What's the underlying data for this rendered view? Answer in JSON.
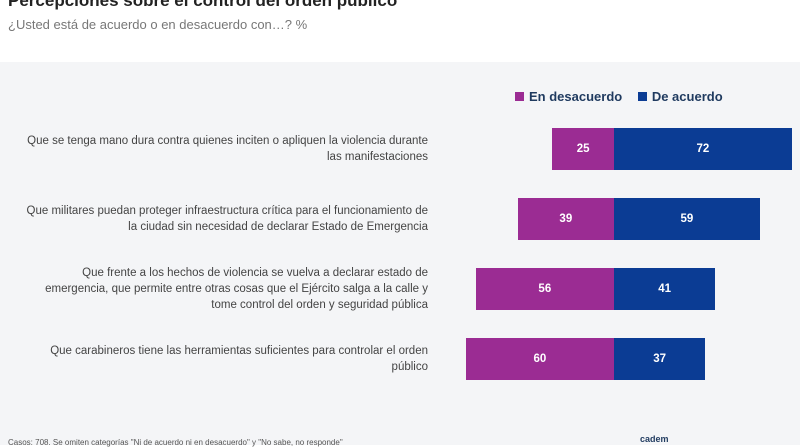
{
  "title": "Percepciones sobre el control del orden público",
  "subtitle": "¿Usted está de acuerdo o en desacuerdo con…? %",
  "footer_note": "Casos: 708. Se omiten categorías \"Ni de acuerdo ni en desacuerdo\" y \"No sabe, no responde\"",
  "brand": "cadem",
  "colors": {
    "desacuerdo": "#9b2c93",
    "acuerdo": "#0b3c94"
  },
  "chart_data": {
    "type": "bar",
    "orientation": "horizontal-diverging",
    "categories": [
      "Que se tenga mano dura contra quienes inciten o apliquen la violencia durante las manifestaciones",
      "Que militares puedan proteger infraestructura crítica para el funcionamiento de la ciudad sin necesidad de declarar Estado de Emergencia",
      "Que frente a los hechos de violencia se vuelva a declarar estado de emergencia, que permite entre otras cosas que el Ejército salga a la calle y tome control del orden y seguridad pública",
      "Que carabineros tiene las herramientas suficientes para controlar el orden público"
    ],
    "series": [
      {
        "name": "En desacuerdo",
        "values": [
          25,
          39,
          56,
          60
        ]
      },
      {
        "name": "De acuerdo",
        "values": [
          72,
          59,
          41,
          37
        ]
      }
    ],
    "legend": "top-right"
  }
}
